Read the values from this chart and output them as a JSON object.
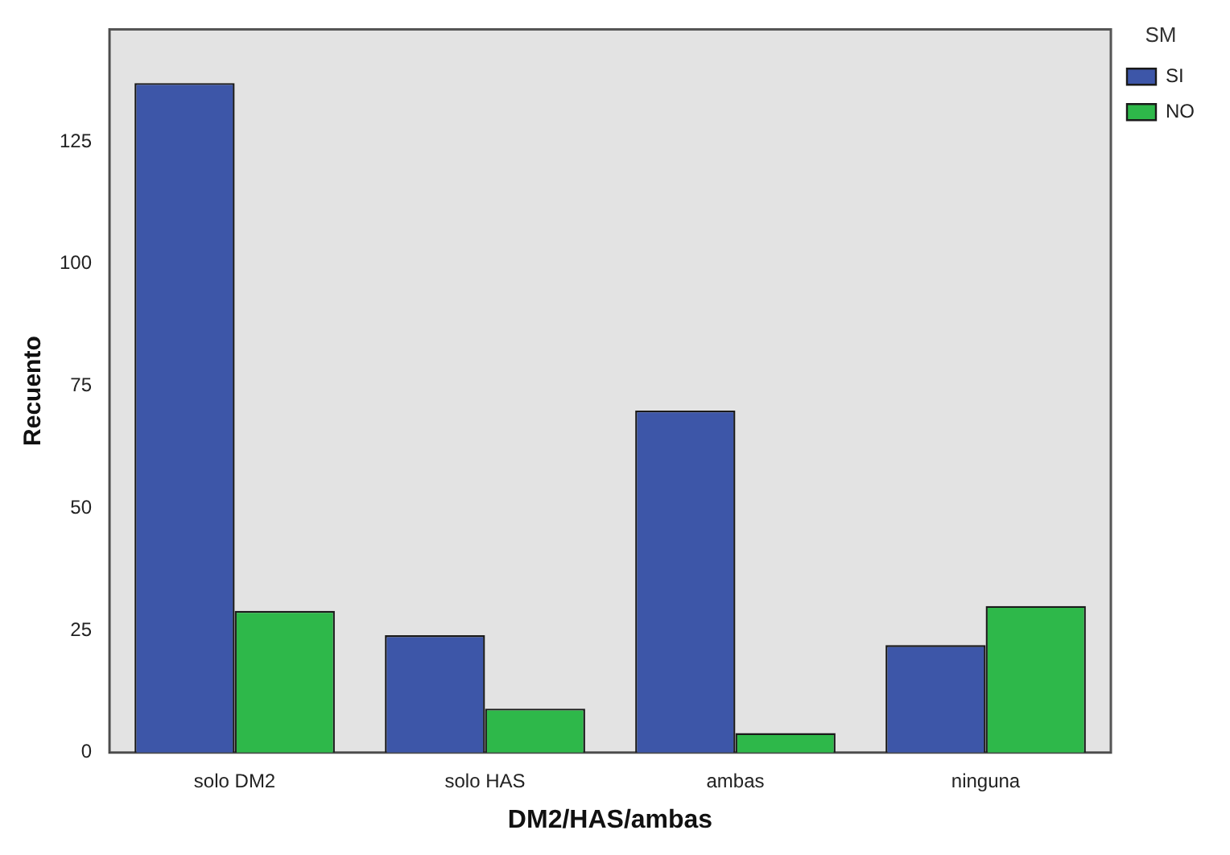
{
  "chart_data": {
    "type": "bar",
    "xlabel": "DM2/HAS/ambas",
    "ylabel": "Recuento",
    "legend_title": "SM",
    "categories": [
      "solo DM2",
      "solo HAS",
      "ambas",
      "ninguna"
    ],
    "series": [
      {
        "name": "SI",
        "color": "#3d56a8",
        "values": [
          137,
          24,
          70,
          22
        ]
      },
      {
        "name": "NO",
        "color": "#2eb84a",
        "values": [
          29,
          9,
          4,
          30
        ]
      }
    ],
    "ylim": [
      0,
      148
    ],
    "yticks": [
      0,
      25,
      50,
      75,
      100,
      125
    ],
    "legend": "top right",
    "grid": false
  }
}
